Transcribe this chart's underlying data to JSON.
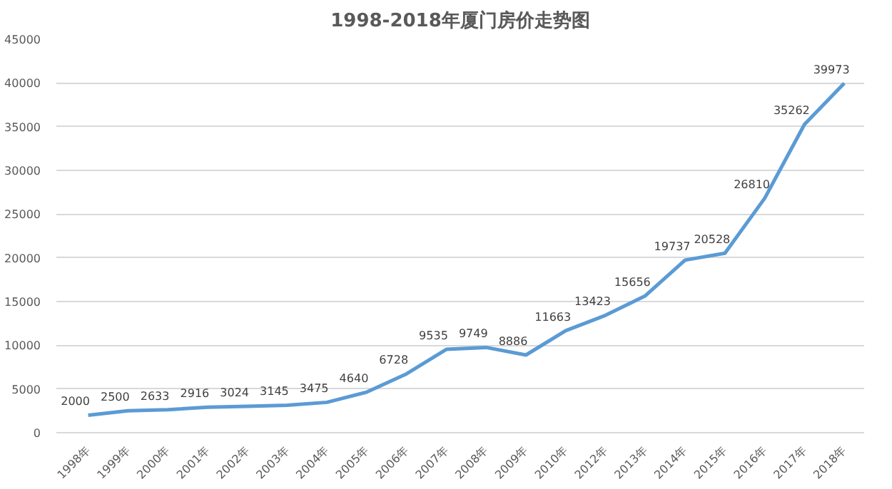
{
  "chart_data": {
    "type": "line",
    "title": "1998-2018年厦门房价走势图",
    "categories": [
      "1998年",
      "1999年",
      "2000年",
      "2001年",
      "2002年",
      "2003年",
      "2004年",
      "2005年",
      "2006年",
      "2007年",
      "2008年",
      "2009年",
      "2010年",
      "2012年",
      "2013年",
      "2014年",
      "2015年",
      "2016年",
      "2017年",
      "2018年"
    ],
    "series": [
      {
        "color": "#5b9bd5",
        "values": [
          2000,
          2500,
          2633,
          2916,
          3024,
          3145,
          3475,
          4640,
          6728,
          9535,
          9749,
          8886,
          11663,
          13423,
          15656,
          19737,
          20528,
          26810,
          35262,
          39973
        ]
      }
    ],
    "ylim": [
      0,
      45000
    ],
    "yticks": [
      0,
      5000,
      10000,
      15000,
      20000,
      25000,
      30000,
      35000,
      40000,
      45000
    ],
    "grid": "y",
    "data_labels": true,
    "marker": "none",
    "line_style": "solid"
  }
}
